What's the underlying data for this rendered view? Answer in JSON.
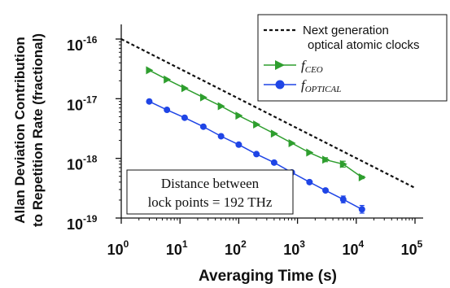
{
  "chart_data": {
    "type": "line",
    "x_scale": "log",
    "y_scale": "log",
    "xlim": [
      1,
      100000
    ],
    "ylim": [
      1e-19,
      2e-16
    ],
    "xlabel": "Averaging Time (s)",
    "ylabel_line1": "Allan Deviation Contribution",
    "ylabel_line2": "to Repetition Rate (fractional)",
    "x_ticks": [
      {
        "value": 1,
        "base": "10",
        "exp": "0"
      },
      {
        "value": 10,
        "base": "10",
        "exp": "1"
      },
      {
        "value": 100,
        "base": "10",
        "exp": "2"
      },
      {
        "value": 1000,
        "base": "10",
        "exp": "3"
      },
      {
        "value": 10000,
        "base": "10",
        "exp": "4"
      },
      {
        "value": 100000,
        "base": "10",
        "exp": "5"
      }
    ],
    "y_ticks": [
      {
        "value": 1e-19,
        "base": "10",
        "exp": "-19"
      },
      {
        "value": 1e-18,
        "base": "10",
        "exp": "-18"
      },
      {
        "value": 1e-17,
        "base": "10",
        "exp": "-17"
      },
      {
        "value": 1e-16,
        "base": "10",
        "exp": "-16"
      }
    ],
    "grid": false,
    "legend_position": "top-right",
    "series": [
      {
        "name": "Next generation",
        "name_line2": "optical atomic clocks",
        "style": "dashed",
        "color": "#111111",
        "x": [
          1,
          100000
        ],
        "y": [
          1e-16,
          3.2e-19
        ]
      },
      {
        "name": "f",
        "name_sub": "CEO",
        "style": "line-triangle",
        "color": "#2e9e2e",
        "x": [
          3,
          6,
          12,
          25,
          50,
          100,
          200,
          400,
          800,
          1600,
          3000,
          6000,
          12500
        ],
        "y": [
          3e-17,
          2.1e-17,
          1.5e-17,
          1.05e-17,
          7.5e-18,
          5.2e-18,
          3.7e-18,
          2.6e-18,
          1.8e-18,
          1.25e-18,
          9.5e-19,
          8e-19,
          4.8e-19
        ],
        "yerr": [
          0,
          0,
          0,
          0,
          0,
          0,
          0,
          0,
          0,
          0,
          0.08,
          0.12,
          0.05
        ]
      },
      {
        "name": "f",
        "name_sub": "OPTICAL",
        "style": "line-circle",
        "color": "#1f45e6",
        "x": [
          3,
          6,
          12,
          25,
          50,
          100,
          200,
          400,
          800,
          1600,
          3000,
          6000,
          12500
        ],
        "y": [
          9e-18,
          6.5e-18,
          4.8e-18,
          3.4e-18,
          2.35e-18,
          1.7e-18,
          1.18e-18,
          8.5e-19,
          5.8e-19,
          4e-19,
          2.9e-19,
          2.05e-19,
          1.4e-19
        ],
        "yerr": [
          0,
          0,
          0,
          0,
          0,
          0,
          0,
          0,
          0,
          0,
          0.06,
          0.14,
          0.16
        ]
      }
    ],
    "annotation_line1": "Distance between",
    "annotation_line2": "lock points = 192 THz"
  }
}
